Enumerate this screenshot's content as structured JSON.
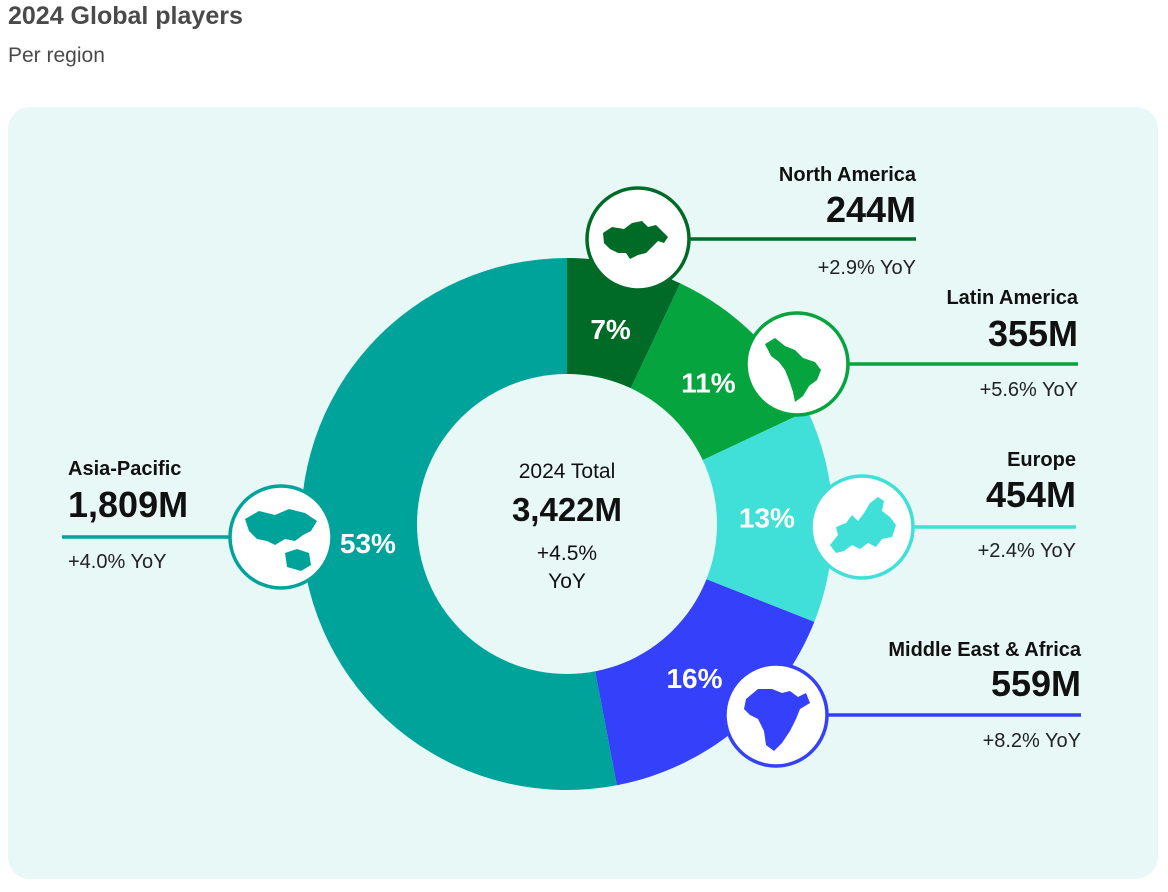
{
  "header": {
    "title": "2024 Global players",
    "subtitle": "Per region"
  },
  "colors": {
    "background": "#ffffff",
    "panel": "#e8f8f7",
    "center": "#e8f8f7"
  },
  "chart_data": {
    "type": "pie",
    "title": "2024 Global players",
    "subtitle": "Per region",
    "center": {
      "label": "2024 Total",
      "total": "3,422M",
      "yoy_line1": "+4.5%",
      "yoy_line2": "YoY"
    },
    "series": [
      {
        "name": "North America",
        "share": 7,
        "share_label": "7%",
        "value": "244M",
        "yoy": "+2.9% YoY",
        "color": "#006b27",
        "icon": "north-america-map-icon"
      },
      {
        "name": "Latin America",
        "share": 11,
        "share_label": "11%",
        "value": "355M",
        "yoy": "+5.6% YoY",
        "color": "#06a43e",
        "icon": "latin-america-map-icon"
      },
      {
        "name": "Europe",
        "share": 13,
        "share_label": "13%",
        "value": "454M",
        "yoy": "+2.4% YoY",
        "color": "#40e0d8",
        "icon": "europe-map-icon"
      },
      {
        "name": "Middle East & Africa",
        "share": 16,
        "share_label": "16%",
        "value": "559M",
        "yoy": "+8.2% YoY",
        "color": "#3440fa",
        "icon": "africa-map-icon"
      },
      {
        "name": "Asia-Pacific",
        "share": 53,
        "share_label": "53%",
        "value": "1,809M",
        "yoy": "+4.0% YoY",
        "color": "#00a39a",
        "icon": "asia-pacific-map-icon"
      }
    ]
  }
}
